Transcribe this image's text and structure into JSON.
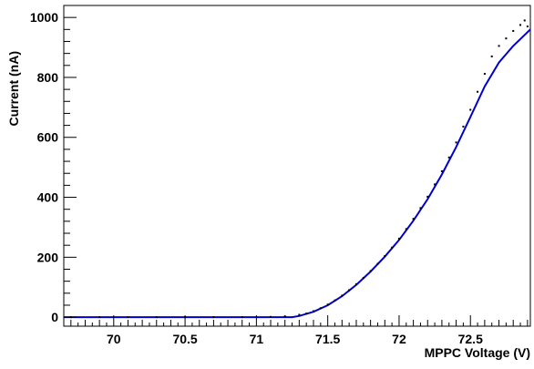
{
  "chart_data": {
    "type": "scatter",
    "xlabel": "MPPC Voltage (V)",
    "ylabel": "Current (nA)",
    "xlim": [
      69.65,
      72.92
    ],
    "ylim": [
      -30,
      1040
    ],
    "x_ticks": [
      70,
      70.5,
      71,
      71.5,
      72,
      72.5
    ],
    "x_tick_labels": [
      "70",
      "70.5",
      "71",
      "71.5",
      "72",
      "72.5"
    ],
    "y_ticks": [
      0,
      200,
      400,
      600,
      800,
      1000
    ],
    "y_tick_labels": [
      "0",
      "200",
      "400",
      "600",
      "800",
      "1000"
    ],
    "grid": false,
    "series": [
      {
        "kind": "points",
        "color": "#000000",
        "x": [
          69.7,
          69.9,
          70.1,
          70.3,
          70.5,
          70.7,
          70.9,
          71.1,
          71.2,
          71.3,
          71.35,
          71.4,
          71.45,
          71.5,
          71.55,
          71.6,
          71.65,
          71.7,
          71.75,
          71.8,
          71.85,
          71.9,
          71.95,
          72.0,
          72.05,
          72.1,
          72.15,
          72.2,
          72.25,
          72.3,
          72.35,
          72.4,
          72.45,
          72.5,
          72.55,
          72.6,
          72.65,
          72.7,
          72.75,
          72.8,
          72.85,
          72.88,
          72.9
        ],
        "y": [
          0,
          0,
          0,
          0,
          0,
          0,
          0,
          1,
          3,
          8,
          12,
          20,
          30,
          42,
          56,
          72,
          90,
          110,
          131,
          154,
          178,
          204,
          232,
          262,
          294,
          328,
          364,
          402,
          443,
          487,
          533,
          583,
          636,
          692,
          752,
          812,
          870,
          905,
          930,
          955,
          975,
          990,
          970
        ]
      },
      {
        "kind": "fit",
        "color": "#0000cc",
        "x": [
          69.65,
          71.25,
          71.3,
          71.4,
          71.5,
          71.6,
          71.7,
          71.8,
          71.9,
          72.0,
          72.1,
          72.2,
          72.3,
          72.4,
          72.5,
          72.6,
          72.7,
          72.8,
          72.92
        ],
        "y": [
          0,
          0,
          4,
          18,
          40,
          70,
          108,
          152,
          202,
          258,
          322,
          394,
          476,
          568,
          668,
          770,
          850,
          905,
          960
        ]
      }
    ]
  }
}
